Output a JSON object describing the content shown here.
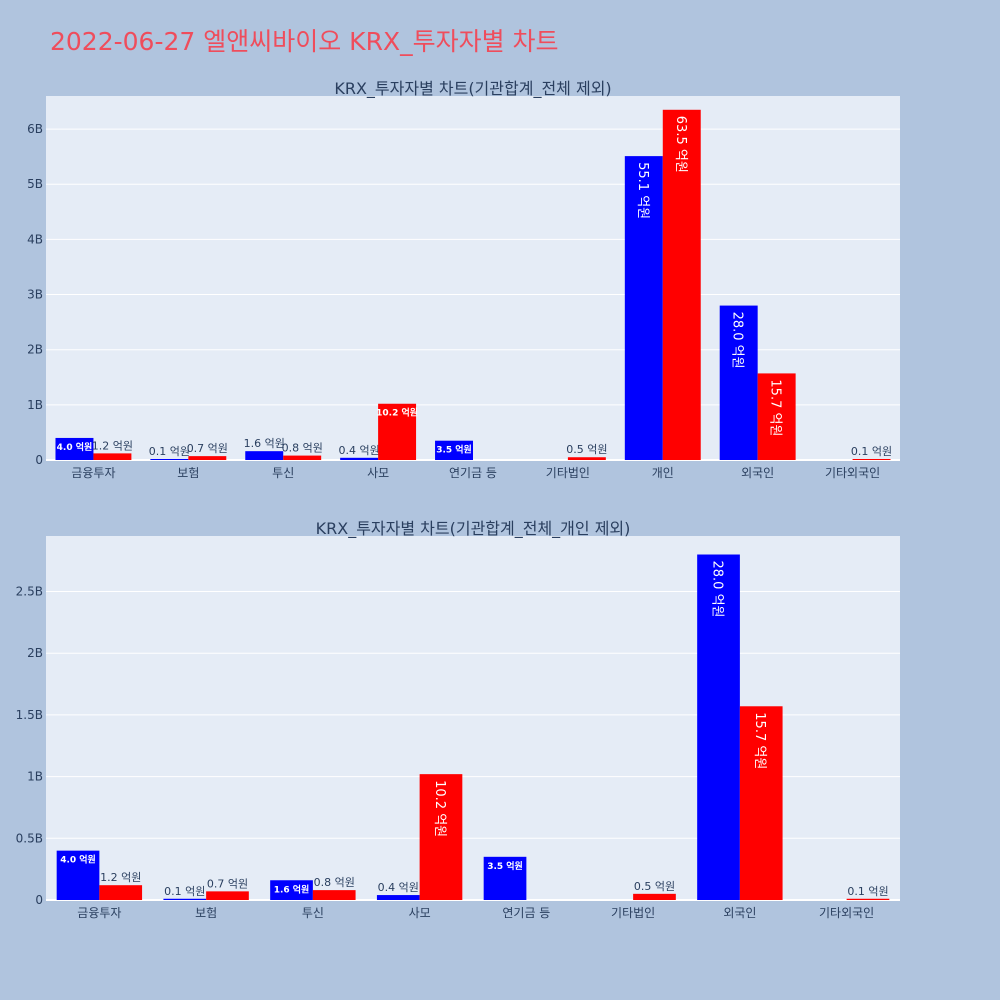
{
  "page": {
    "title": "2022-06-27 엘앤씨바이오 KRX_투자자별 차트"
  },
  "colors": {
    "background": "#b0c4de",
    "plot_bg": "#e5ecf6",
    "grid": "#ffffff",
    "series_blue": "#0000ff",
    "series_red": "#ff0000",
    "title": "#ef4d5c",
    "text": "#2a3f5f"
  },
  "chart_data": [
    {
      "type": "bar",
      "title": "KRX_투자자별 차트(기관합계_전체 제외)",
      "categories": [
        "금융투자",
        "보험",
        "투신",
        "사모",
        "연기금 등",
        "기타법인",
        "개인",
        "외국인",
        "기타외국인"
      ],
      "ylim": [
        0,
        6.6
      ],
      "yticks": [
        0,
        1,
        2,
        3,
        4,
        5,
        6
      ],
      "ytick_labels": [
        "0",
        "1B",
        "2B",
        "3B",
        "4B",
        "5B",
        "6B"
      ],
      "series": [
        {
          "color": "#0000ff",
          "values": [
            0.4,
            0.01,
            0.16,
            0.04,
            0.35,
            0,
            5.51,
            2.8,
            0
          ],
          "labels": [
            "4.0 억원",
            "0.1 억원",
            "1.6 억원",
            "0.4 억원",
            "3.5 억원",
            "",
            "55.1 억원",
            "28.0 억원",
            ""
          ]
        },
        {
          "color": "#ff0000",
          "values": [
            0.12,
            0.07,
            0.08,
            1.02,
            0,
            0.05,
            6.35,
            1.57,
            0.01
          ],
          "labels": [
            "1.2 억원",
            "0.7 억원",
            "0.8 억원",
            "10.2 억원",
            "",
            "0.5 억원",
            "63.5 억원",
            "15.7 억원",
            "0.1 억원"
          ]
        }
      ]
    },
    {
      "type": "bar",
      "title": "KRX_투자자별 차트(기관합계_전체_개인 제외)",
      "categories": [
        "금융투자",
        "보험",
        "투신",
        "사모",
        "연기금 등",
        "기타법인",
        "외국인",
        "기타외국인"
      ],
      "ylim": [
        0,
        2.95
      ],
      "yticks": [
        0,
        0.5,
        1,
        1.5,
        2,
        2.5
      ],
      "ytick_labels": [
        "0",
        "0.5B",
        "1B",
        "1.5B",
        "2B",
        "2.5B"
      ],
      "series": [
        {
          "color": "#0000ff",
          "values": [
            0.4,
            0.01,
            0.16,
            0.04,
            0.35,
            0,
            2.8,
            0
          ],
          "labels": [
            "4.0 억원",
            "0.1 억원",
            "1.6 억원",
            "0.4 억원",
            "3.5 억원",
            "",
            "28.0 억원",
            ""
          ]
        },
        {
          "color": "#ff0000",
          "values": [
            0.12,
            0.07,
            0.08,
            1.02,
            0,
            0.05,
            1.57,
            0.01
          ],
          "labels": [
            "1.2 억원",
            "0.7 억원",
            "0.8 억원",
            "10.2 억원",
            "",
            "0.5 억원",
            "15.7 억원",
            "0.1 억원"
          ]
        }
      ]
    }
  ]
}
